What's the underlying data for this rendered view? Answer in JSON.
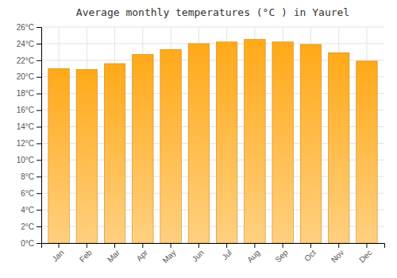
{
  "chart_data": {
    "type": "bar",
    "title": "Average monthly temperatures (°C ) in Yaurel",
    "categories": [
      "Jan",
      "Feb",
      "Mar",
      "Apr",
      "May",
      "Jun",
      "Jul",
      "Aug",
      "Sep",
      "Oct",
      "Nov",
      "Dec"
    ],
    "values": [
      21.0,
      20.9,
      21.6,
      22.7,
      23.3,
      24.0,
      24.2,
      24.5,
      24.2,
      23.9,
      22.9,
      21.9
    ],
    "color": "#FFA918",
    "ylim": [
      0,
      26
    ],
    "yticks": [
      {
        "value": 0,
        "label": "0°C"
      },
      {
        "value": 2,
        "label": "2°C"
      },
      {
        "value": 4,
        "label": "4°C"
      },
      {
        "value": 6,
        "label": "6°C"
      },
      {
        "value": 8,
        "label": "8°C"
      },
      {
        "value": 10,
        "label": "10°C"
      },
      {
        "value": 12,
        "label": "12°C"
      },
      {
        "value": 14,
        "label": "14°C"
      },
      {
        "value": 16,
        "label": "16°C"
      },
      {
        "value": 18,
        "label": "18°C"
      },
      {
        "value": 20,
        "label": "20°C"
      },
      {
        "value": 22,
        "label": "22°C"
      },
      {
        "value": 24,
        "label": "24°C"
      },
      {
        "value": 26,
        "label": "26°C"
      }
    ],
    "grid": true
  }
}
